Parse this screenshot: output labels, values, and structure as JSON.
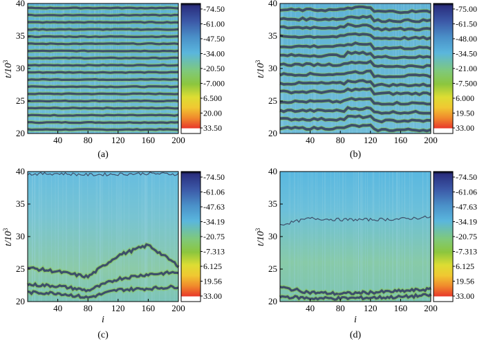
{
  "chart_data": [
    {
      "type": "heatmap",
      "panel_label": "(a)",
      "xlabel": "",
      "ylabel": "t/10",
      "ylabel_sup": "3",
      "xlim": [
        0,
        200
      ],
      "ylim": [
        20,
        40
      ],
      "xticks": [
        "40",
        "80",
        "120",
        "160",
        "200"
      ],
      "yticks": [
        "20",
        "25",
        "30",
        "35",
        "40"
      ],
      "colorbar_ticks": [
        "-74.50",
        "-61.00",
        "-47.50",
        "-34.00",
        "-20.50",
        "-7.000",
        "6.500",
        "20.00",
        "33.50"
      ],
      "pattern": "dense horizontal dark stripes",
      "stripes_t": [
        20.6,
        21.7,
        22.8,
        23.9,
        25.0,
        26.1,
        27.2,
        28.3,
        29.4,
        30.5,
        31.6,
        32.7,
        33.8,
        34.9,
        36.0,
        37.1,
        38.2,
        39.3
      ]
    },
    {
      "type": "heatmap",
      "panel_label": "(b)",
      "xlabel": "",
      "ylabel": "t/10",
      "ylabel_sup": "3",
      "xlim": [
        0,
        200
      ],
      "ylim": [
        20,
        40
      ],
      "xticks": [
        "40",
        "80",
        "120",
        "160",
        "200"
      ],
      "yticks": [
        "20",
        "25",
        "30",
        "35",
        "40"
      ],
      "colorbar_ticks": [
        "-75.00",
        "-61.50",
        "-48.00",
        "-34.50",
        "-21.00",
        "-7.500",
        "6.000",
        "19.50",
        "33.00"
      ],
      "pattern": "irregular horizontal dark stripes",
      "stripes_t": [
        20.8,
        22.2,
        23.5,
        24.9,
        26.4,
        27.7,
        29.1,
        30.6,
        32.0,
        33.4,
        34.9,
        36.3,
        37.6,
        39.0
      ]
    },
    {
      "type": "heatmap",
      "panel_label": "(c)",
      "xlabel": "i",
      "ylabel": "t/10",
      "ylabel_sup": "3",
      "xlim": [
        0,
        200
      ],
      "ylim": [
        20,
        40
      ],
      "xticks": [
        "40",
        "80",
        "120",
        "160",
        "200"
      ],
      "yticks": [
        "20",
        "25",
        "30",
        "35",
        "40"
      ],
      "colorbar_ticks": [
        "-74.50",
        "-61.06",
        "-47.63",
        "-34.19",
        "-20.75",
        "-7.313",
        "6.125",
        "19.56",
        "33.00"
      ],
      "pattern": "sparse dark fronts near bottom",
      "fronts": [
        {
          "x": [
            0,
            40,
            80,
            120,
            160,
            200
          ],
          "t": [
            25.2,
            24.6,
            23.8,
            27.1,
            28.7,
            25.5
          ]
        },
        {
          "x": [
            0,
            40,
            80,
            120,
            160,
            200
          ],
          "t": [
            22.6,
            22.4,
            21.7,
            23.5,
            24.2,
            24.5
          ]
        },
        {
          "x": [
            0,
            40,
            80,
            120,
            160,
            200
          ],
          "t": [
            21.4,
            21.3,
            20.6,
            21.8,
            22.0,
            22.3
          ]
        },
        {
          "x": [
            0,
            40,
            80,
            120,
            160,
            200
          ],
          "t": [
            39.6,
            39.7,
            39.5,
            39.6,
            39.7,
            39.6
          ]
        }
      ]
    },
    {
      "type": "heatmap",
      "panel_label": "(d)",
      "xlabel": "i",
      "ylabel": "t/10",
      "ylabel_sup": "3",
      "xlim": [
        0,
        200
      ],
      "ylim": [
        20,
        40
      ],
      "xticks": [
        "40",
        "80",
        "120",
        "160",
        "200"
      ],
      "yticks": [
        "20",
        "25",
        "30",
        "35",
        "40"
      ],
      "colorbar_ticks": [
        "-74.50",
        "-61.06",
        "-47.63",
        "-34.19",
        "-20.75",
        "-7.313",
        "6.125",
        "19.56",
        "33.00"
      ],
      "pattern": "single contour near t=32.5, fronts near bottom",
      "fronts": [
        {
          "x": [
            0,
            40,
            80,
            120,
            160,
            200
          ],
          "t": [
            31.8,
            32.8,
            32.6,
            32.6,
            32.7,
            33.0
          ]
        },
        {
          "x": [
            0,
            40,
            80,
            120,
            160,
            200
          ],
          "t": [
            22.2,
            21.4,
            21.2,
            21.4,
            21.6,
            21.9
          ]
        },
        {
          "x": [
            0,
            40,
            80,
            120,
            160,
            200
          ],
          "t": [
            20.8,
            20.5,
            20.5,
            20.6,
            20.7,
            21.0
          ]
        }
      ]
    }
  ],
  "colors": {
    "background": "#6ab8d8",
    "stripe": "#3d4f6a",
    "green": "#8cc63e",
    "colorbar": [
      "#000000",
      "#2a2f7f",
      "#3c5aa8",
      "#4a90c8",
      "#5ab6dd",
      "#7fc97a",
      "#8cc63e",
      "#dddd33",
      "#f0c832",
      "#f08a2c",
      "#e8382a",
      "#ffffff"
    ]
  }
}
